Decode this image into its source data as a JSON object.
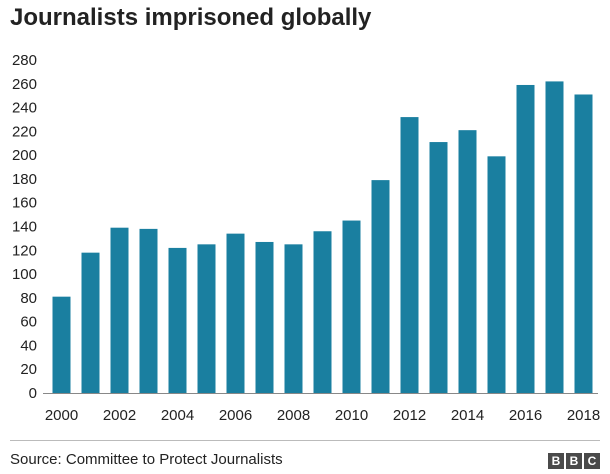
{
  "chart_data": {
    "type": "bar",
    "title": "Journalists imprisoned globally",
    "x": [
      2000,
      2001,
      2002,
      2003,
      2004,
      2005,
      2006,
      2007,
      2008,
      2009,
      2010,
      2011,
      2012,
      2013,
      2014,
      2015,
      2016,
      2017,
      2018
    ],
    "x_tick_labels": [
      "2000",
      "2002",
      "2004",
      "2006",
      "2008",
      "2010",
      "2012",
      "2014",
      "2016",
      "2018"
    ],
    "values": [
      81,
      118,
      139,
      138,
      122,
      125,
      134,
      127,
      125,
      136,
      145,
      179,
      232,
      211,
      221,
      199,
      259,
      262,
      251
    ],
    "y_ticks": [
      0,
      20,
      40,
      60,
      80,
      100,
      120,
      140,
      160,
      180,
      200,
      220,
      240,
      260,
      280
    ],
    "ylim": [
      0,
      280
    ],
    "xlabel": "",
    "ylabel": "",
    "grid": false,
    "bar_color": "#1a7fa0"
  },
  "footer": {
    "source": "Source: Committee to Protect Journalists",
    "logo_letters": [
      "B",
      "B",
      "C"
    ]
  }
}
